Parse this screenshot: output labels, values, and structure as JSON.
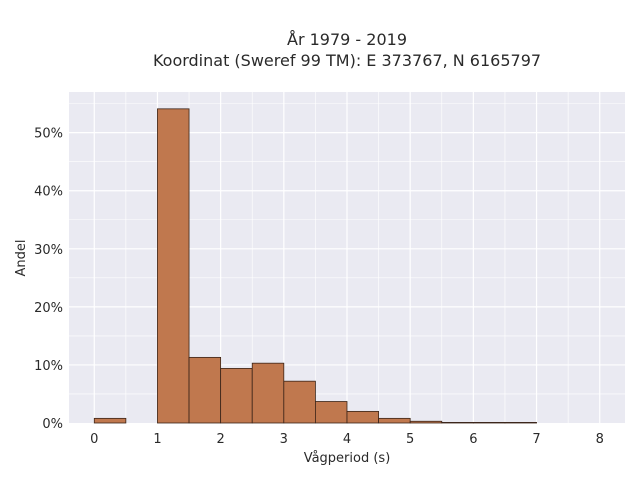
{
  "chart_data": {
    "type": "bar",
    "title": [
      "År 1979 - 2019",
      "Koordinat (Sweref 99 TM): E 373767, N 6165797"
    ],
    "xlabel": "Vågperiod (s)",
    "ylabel": "Andel",
    "xlim": [
      -0.4,
      8.4
    ],
    "ylim": [
      0,
      57
    ],
    "x_ticks": [
      0,
      1,
      2,
      3,
      4,
      5,
      6,
      7,
      8
    ],
    "x_tick_labels": [
      "0",
      "1",
      "2",
      "3",
      "4",
      "5",
      "6",
      "7",
      "8"
    ],
    "y_ticks": [
      0,
      10,
      20,
      30,
      40,
      50
    ],
    "y_tick_labels": [
      "0%",
      "10%",
      "20%",
      "30%",
      "40%",
      "50%"
    ],
    "bin_width": 0.5,
    "bins": [
      {
        "start": 0.0,
        "value": 0.8
      },
      {
        "start": 0.5,
        "value": 0
      },
      {
        "start": 1.0,
        "value": 54.1
      },
      {
        "start": 1.5,
        "value": 11.3
      },
      {
        "start": 2.0,
        "value": 9.4
      },
      {
        "start": 2.5,
        "value": 10.3
      },
      {
        "start": 3.0,
        "value": 7.2
      },
      {
        "start": 3.5,
        "value": 3.7
      },
      {
        "start": 4.0,
        "value": 2.0
      },
      {
        "start": 4.5,
        "value": 0.8
      },
      {
        "start": 5.0,
        "value": 0.3
      },
      {
        "start": 5.5,
        "value": 0.1
      },
      {
        "start": 6.0,
        "value": 0.1
      },
      {
        "start": 6.5,
        "value": 0.1
      }
    ],
    "grid": true,
    "colors": {
      "bar_fill": "#c0784e",
      "bar_edge": "#3a2418",
      "plot_background": "#eaeaf2",
      "grid": "#ffffff"
    }
  }
}
